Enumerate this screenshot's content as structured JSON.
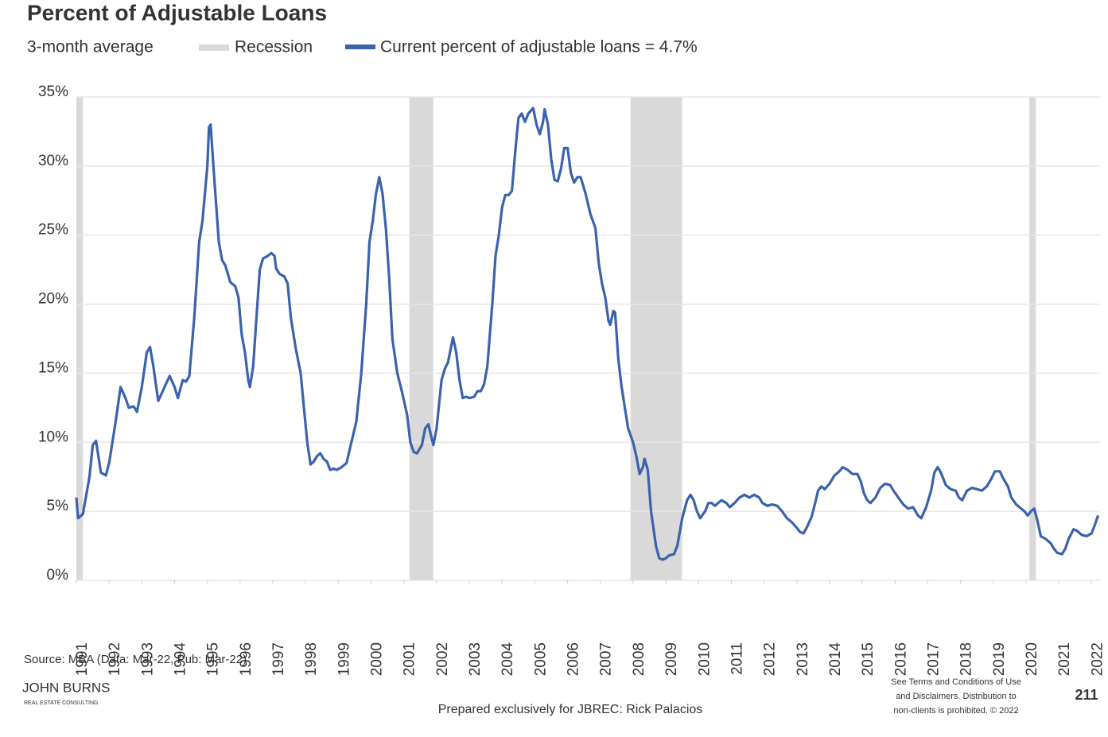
{
  "chart_data": {
    "type": "line",
    "title": "Percent of Adjustable Loans",
    "subtitle": "3-month average",
    "recession": {
      "name": "Recession",
      "color": "#d9d9d9",
      "periods": [
        [
          1991.0,
          1991.2
        ],
        [
          2001.17,
          2001.9
        ],
        [
          2007.92,
          2009.5
        ],
        [
          2020.1,
          2020.3
        ]
      ]
    },
    "x": [
      1991.0,
      1991.05,
      1991.2,
      1991.4,
      1991.5,
      1991.6,
      1991.75,
      1991.9,
      1992.0,
      1992.2,
      1992.35,
      1992.5,
      1992.6,
      1992.75,
      1992.85,
      1993.0,
      1993.15,
      1993.25,
      1993.35,
      1993.5,
      1993.6,
      1993.75,
      1993.85,
      1994.0,
      1994.1,
      1994.25,
      1994.35,
      1994.45,
      1994.6,
      1994.75,
      1994.85,
      1995.0,
      1995.05,
      1995.1,
      1995.2,
      1995.35,
      1995.45,
      1995.55,
      1995.7,
      1995.85,
      1995.95,
      1996.05,
      1996.15,
      1996.25,
      1996.3,
      1996.4,
      1996.5,
      1996.6,
      1996.7,
      1996.85,
      1996.95,
      1997.05,
      1997.1,
      1997.2,
      1997.35,
      1997.45,
      1997.55,
      1997.7,
      1997.85,
      1997.95,
      1998.05,
      1998.15,
      1998.25,
      1998.35,
      1998.45,
      1998.55,
      1998.65,
      1998.75,
      1998.85,
      1998.95,
      1999.1,
      1999.25,
      1999.4,
      1999.55,
      1999.7,
      1999.85,
      1999.95,
      2000.05,
      2000.15,
      2000.25,
      2000.35,
      2000.45,
      2000.55,
      2000.65,
      2000.8,
      2000.95,
      2001.1,
      2001.2,
      2001.3,
      2001.4,
      2001.55,
      2001.65,
      2001.75,
      2001.85,
      2001.9,
      2002.0,
      2002.15,
      2002.25,
      2002.35,
      2002.45,
      2002.5,
      2002.6,
      2002.7,
      2002.8,
      2002.9,
      2003.0,
      2003.15,
      2003.25,
      2003.35,
      2003.45,
      2003.55,
      2003.7,
      2003.8,
      2003.9,
      2004.0,
      2004.1,
      2004.2,
      2004.3,
      2004.4,
      2004.5,
      2004.6,
      2004.7,
      2004.8,
      2004.95,
      2005.05,
      2005.15,
      2005.25,
      2005.3,
      2005.4,
      2005.5,
      2005.6,
      2005.7,
      2005.8,
      2005.9,
      2006.0,
      2006.1,
      2006.2,
      2006.3,
      2006.4,
      2006.55,
      2006.7,
      2006.85,
      2006.95,
      2007.05,
      2007.15,
      2007.25,
      2007.3,
      2007.4,
      2007.45,
      2007.55,
      2007.65,
      2007.75,
      2007.85,
      2008.0,
      2008.1,
      2008.2,
      2008.3,
      2008.35,
      2008.45,
      2008.55,
      2008.7,
      2008.8,
      2008.9,
      2009.0,
      2009.1,
      2009.25,
      2009.35,
      2009.5,
      2009.65,
      2009.75,
      2009.85,
      2009.95,
      2010.05,
      2010.2,
      2010.3,
      2010.4,
      2010.5,
      2010.6,
      2010.7,
      2010.85,
      2010.95,
      2011.1,
      2011.25,
      2011.4,
      2011.55,
      2011.7,
      2011.85,
      2011.95,
      2012.1,
      2012.25,
      2012.4,
      2012.55,
      2012.7,
      2012.85,
      2013.0,
      2013.1,
      2013.2,
      2013.3,
      2013.45,
      2013.55,
      2013.65,
      2013.75,
      2013.85,
      2014.0,
      2014.15,
      2014.3,
      2014.4,
      2014.55,
      2014.7,
      2014.85,
      2014.95,
      2015.05,
      2015.15,
      2015.25,
      2015.4,
      2015.55,
      2015.7,
      2015.85,
      2015.95,
      2016.1,
      2016.25,
      2016.4,
      2016.55,
      2016.7,
      2016.8,
      2016.95,
      2017.1,
      2017.2,
      2017.3,
      2017.4,
      2017.55,
      2017.7,
      2017.85,
      2017.95,
      2018.05,
      2018.2,
      2018.35,
      2018.5,
      2018.65,
      2018.8,
      2018.95,
      2019.05,
      2019.2,
      2019.3,
      2019.45,
      2019.55,
      2019.7,
      2019.85,
      2019.95,
      2020.05,
      2020.15,
      2020.25,
      2020.35,
      2020.45,
      2020.6,
      2020.75,
      2020.85,
      2020.95,
      2021.1,
      2021.2,
      2021.3,
      2021.45,
      2021.55,
      2021.7,
      2021.85,
      2022.0,
      2022.1,
      2022.2
    ],
    "series": [
      {
        "name": "Current percent of adjustable loans = 4.7%",
        "color": "#3a62ad",
        "values": [
          6.0,
          4.5,
          4.8,
          7.5,
          9.8,
          10.1,
          7.8,
          7.6,
          8.5,
          11.5,
          14.0,
          13.2,
          12.5,
          12.6,
          12.2,
          14.0,
          16.5,
          16.9,
          15.5,
          13.0,
          13.5,
          14.3,
          14.8,
          14.0,
          13.2,
          14.5,
          14.4,
          14.8,
          19.0,
          24.5,
          26.0,
          30.0,
          32.8,
          33.0,
          29.5,
          24.5,
          23.2,
          22.8,
          21.6,
          21.3,
          20.5,
          17.8,
          16.5,
          14.5,
          14.0,
          15.5,
          19.0,
          22.5,
          23.3,
          23.5,
          23.7,
          23.5,
          22.6,
          22.2,
          22.0,
          21.5,
          19.0,
          16.8,
          15.0,
          12.5,
          10.0,
          8.4,
          8.6,
          9.0,
          9.2,
          8.8,
          8.6,
          8.0,
          8.1,
          8.0,
          8.2,
          8.5,
          10.0,
          11.5,
          15.0,
          20.0,
          24.5,
          26.0,
          28.0,
          29.2,
          28.0,
          25.5,
          22.0,
          17.5,
          15.0,
          13.6,
          12.0,
          10.0,
          9.3,
          9.2,
          9.8,
          11.0,
          11.3,
          10.3,
          9.8,
          11.0,
          14.5,
          15.3,
          15.8,
          17.0,
          17.6,
          16.5,
          14.5,
          13.2,
          13.3,
          13.2,
          13.3,
          13.7,
          13.7,
          14.2,
          15.5,
          20.0,
          23.5,
          25.0,
          27.0,
          27.9,
          27.9,
          28.2,
          31.0,
          33.5,
          33.8,
          33.2,
          33.8,
          34.2,
          33.0,
          32.3,
          33.2,
          34.1,
          33.0,
          30.5,
          29.0,
          28.9,
          29.8,
          31.3,
          31.3,
          29.5,
          28.8,
          29.2,
          29.2,
          28.0,
          26.5,
          25.5,
          23.0,
          21.5,
          20.5,
          18.8,
          18.5,
          19.5,
          19.4,
          16.0,
          14.0,
          12.5,
          11.0,
          10.0,
          9.0,
          7.7,
          8.2,
          8.8,
          8.0,
          5.0,
          2.5,
          1.6,
          1.5,
          1.6,
          1.8,
          1.9,
          2.5,
          4.5,
          5.8,
          6.2,
          5.8,
          5.0,
          4.5,
          5.0,
          5.6,
          5.6,
          5.4,
          5.6,
          5.8,
          5.6,
          5.3,
          5.6,
          6.0,
          6.2,
          6.0,
          6.2,
          6.0,
          5.6,
          5.4,
          5.5,
          5.4,
          5.0,
          4.5,
          4.2,
          3.8,
          3.5,
          3.4,
          3.8,
          4.6,
          5.5,
          6.5,
          6.8,
          6.6,
          7.0,
          7.6,
          7.9,
          8.2,
          8.0,
          7.7,
          7.7,
          7.2,
          6.3,
          5.8,
          5.6,
          6.0,
          6.7,
          7.0,
          6.9,
          6.5,
          6.0,
          5.5,
          5.2,
          5.3,
          4.7,
          4.5,
          5.3,
          6.5,
          7.8,
          8.2,
          7.8,
          6.9,
          6.6,
          6.5,
          6.0,
          5.8,
          6.5,
          6.7,
          6.6,
          6.5,
          6.8,
          7.4,
          7.9,
          7.9,
          7.4,
          6.8,
          6.0,
          5.5,
          5.2,
          5.0,
          4.7,
          5.0,
          5.2,
          4.3,
          3.2,
          3.0,
          2.7,
          2.3,
          2.0,
          1.9,
          2.3,
          3.0,
          3.7,
          3.6,
          3.3,
          3.2,
          3.4,
          4.0,
          4.7
        ]
      }
    ],
    "xlim": [
      1991.0,
      2022.26
    ],
    "xticks": [
      1991,
      1992,
      1993,
      1994,
      1995,
      1996,
      1997,
      1998,
      1999,
      2000,
      2001,
      2002,
      2003,
      2004,
      2005,
      2006,
      2007,
      2008,
      2009,
      2010,
      2011,
      2012,
      2013,
      2014,
      2015,
      2016,
      2017,
      2018,
      2019,
      2020,
      2021,
      2022
    ],
    "ylim": [
      0,
      35
    ],
    "yticks": [
      {
        "value": 0,
        "label": "0%"
      },
      {
        "value": 5,
        "label": "5%"
      },
      {
        "value": 10,
        "label": "10%"
      },
      {
        "value": 15,
        "label": "15%"
      },
      {
        "value": 20,
        "label": "20%"
      },
      {
        "value": 25,
        "label": "25%"
      },
      {
        "value": 30,
        "label": "30%"
      },
      {
        "value": 35,
        "label": "35%"
      }
    ],
    "grid": true
  },
  "footer": {
    "source": "Source: MBA (Data: Mar-22, Pub: Mar-22)",
    "logo": {
      "name": "JOHN BURNS",
      "tagline": "REAL ESTATE CONSULTING"
    },
    "prepared": "Prepared exclusively for JBREC: Rick Palacios",
    "disclaimer": [
      "See Terms and Conditions of Use",
      "and Disclaimers. Distribution to",
      "non-clients is prohibited. © 2022"
    ],
    "page": "211"
  }
}
